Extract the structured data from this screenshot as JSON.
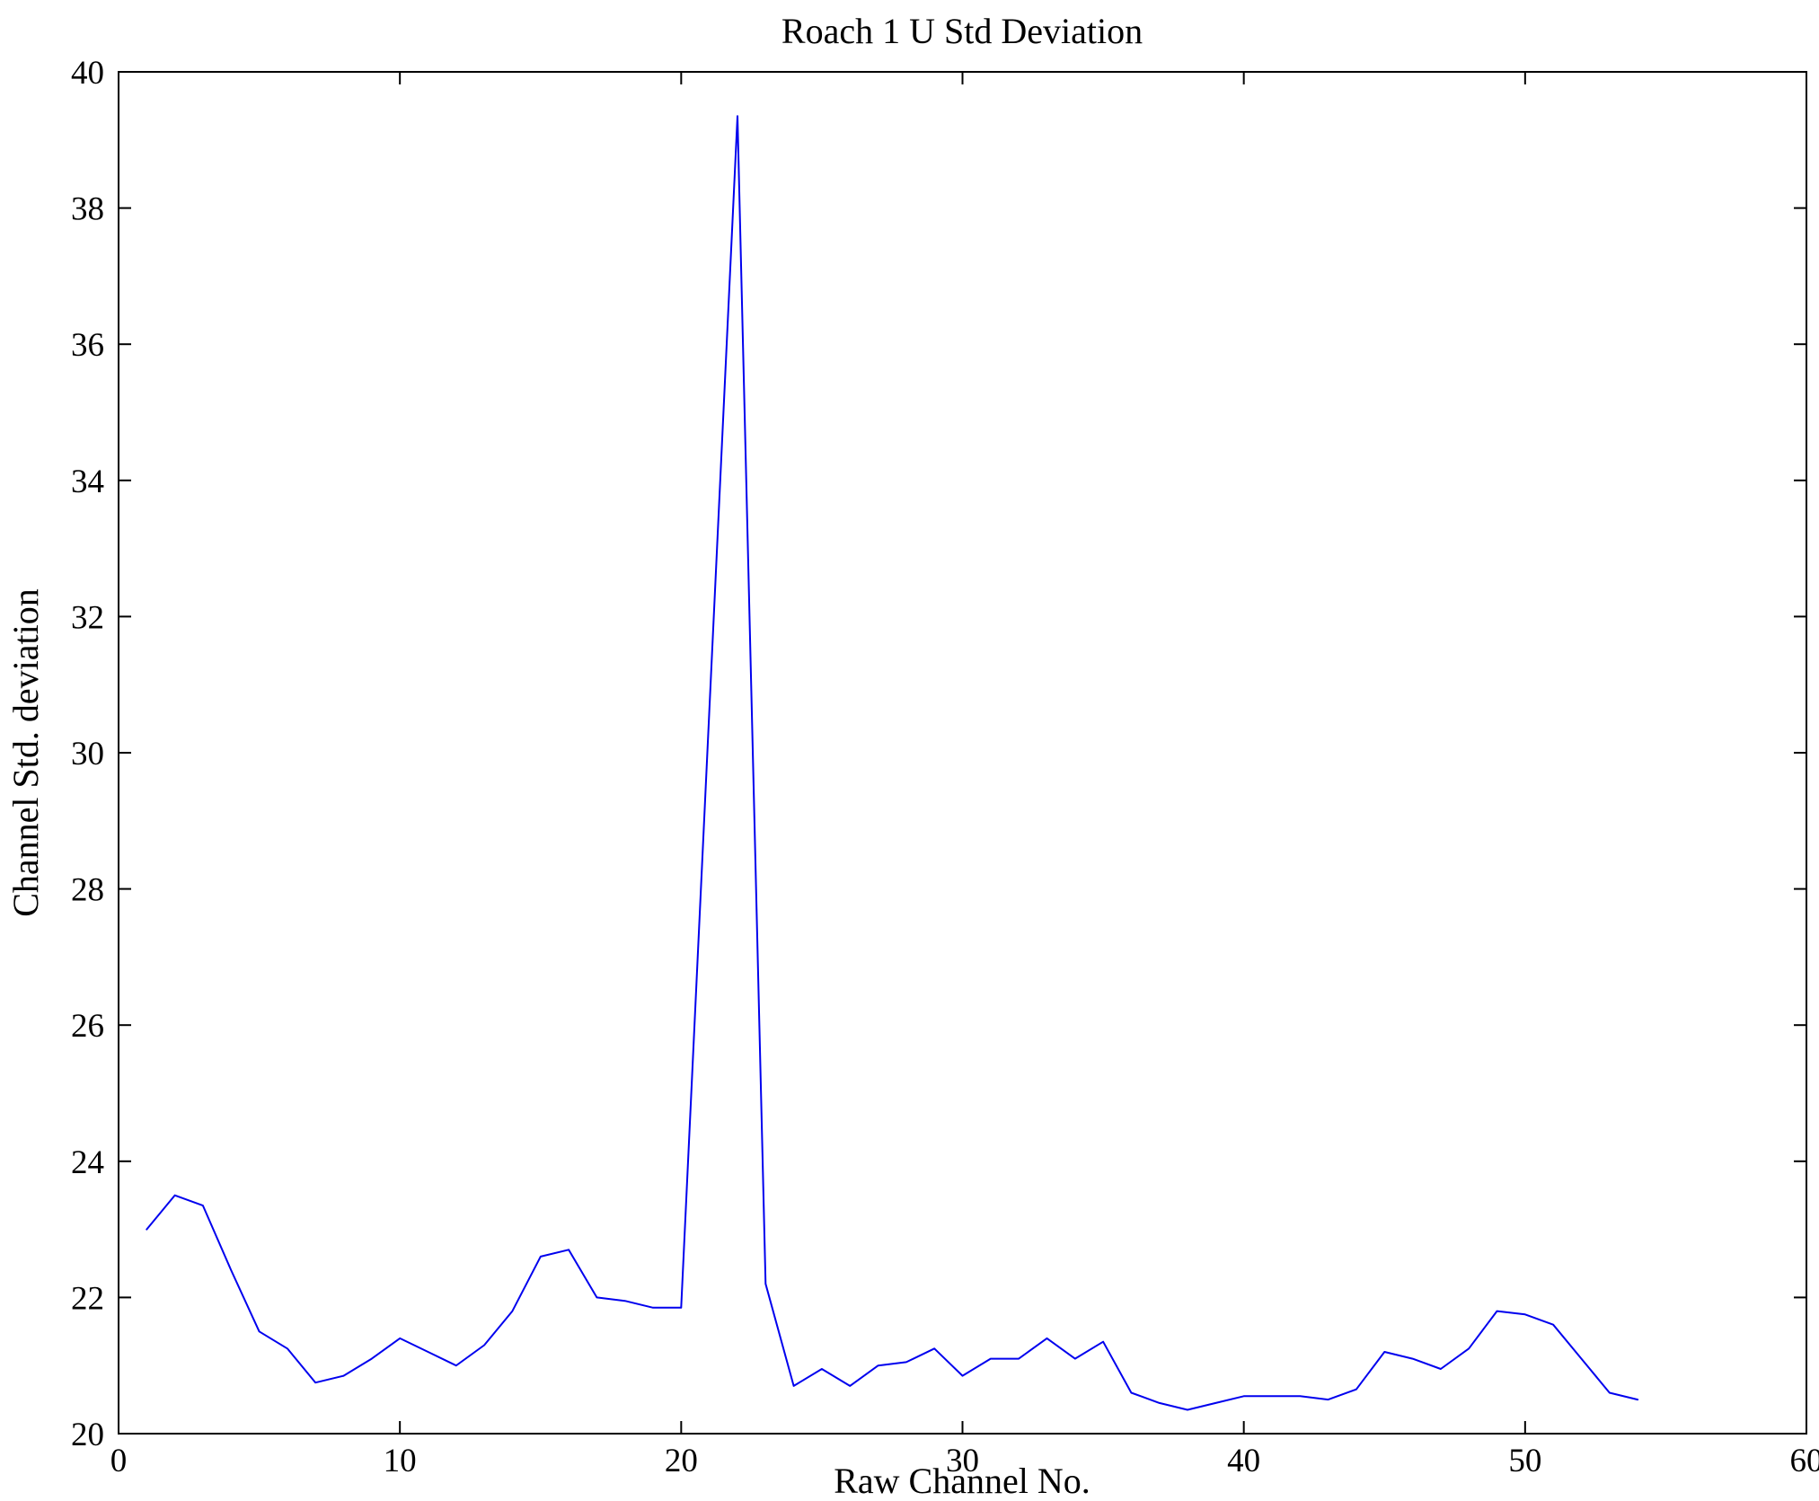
{
  "chart_data": {
    "type": "line",
    "title": "Roach 1 U Std Deviation",
    "xlabel": "Raw Channel No.",
    "ylabel": "Channel Std. deviation",
    "xlim": [
      0,
      60
    ],
    "ylim": [
      20,
      40
    ],
    "xticks": [
      0,
      10,
      20,
      30,
      40,
      50,
      60
    ],
    "yticks": [
      20,
      22,
      24,
      26,
      28,
      30,
      32,
      34,
      36,
      38,
      40
    ],
    "grid": false,
    "legend": "none",
    "line_color": "#0000ee",
    "axis_color": "#000000",
    "x": [
      1,
      2,
      3,
      4,
      5,
      6,
      7,
      8,
      9,
      10,
      11,
      12,
      13,
      14,
      15,
      16,
      17,
      18,
      19,
      20,
      21,
      22,
      23,
      24,
      25,
      26,
      27,
      28,
      29,
      30,
      31,
      32,
      33,
      34,
      35,
      36,
      37,
      38,
      39,
      40,
      41,
      42,
      43,
      44,
      45,
      46,
      47,
      48,
      49,
      50,
      51,
      52,
      53,
      54
    ],
    "y": [
      23.0,
      23.5,
      23.35,
      22.4,
      21.5,
      21.25,
      20.75,
      20.85,
      21.1,
      21.4,
      21.2,
      21.0,
      21.3,
      21.8,
      22.6,
      22.7,
      22.0,
      21.95,
      21.85,
      21.85,
      30.6,
      39.35,
      22.2,
      20.7,
      20.95,
      20.7,
      21.0,
      21.05,
      21.25,
      20.85,
      21.1,
      21.1,
      21.4,
      21.1,
      21.35,
      20.6,
      20.45,
      20.35,
      20.45,
      20.55,
      20.55,
      20.55,
      20.5,
      20.65,
      21.2,
      21.1,
      20.95,
      21.25,
      21.8,
      21.75,
      21.6,
      21.1,
      20.6,
      20.5
    ]
  }
}
